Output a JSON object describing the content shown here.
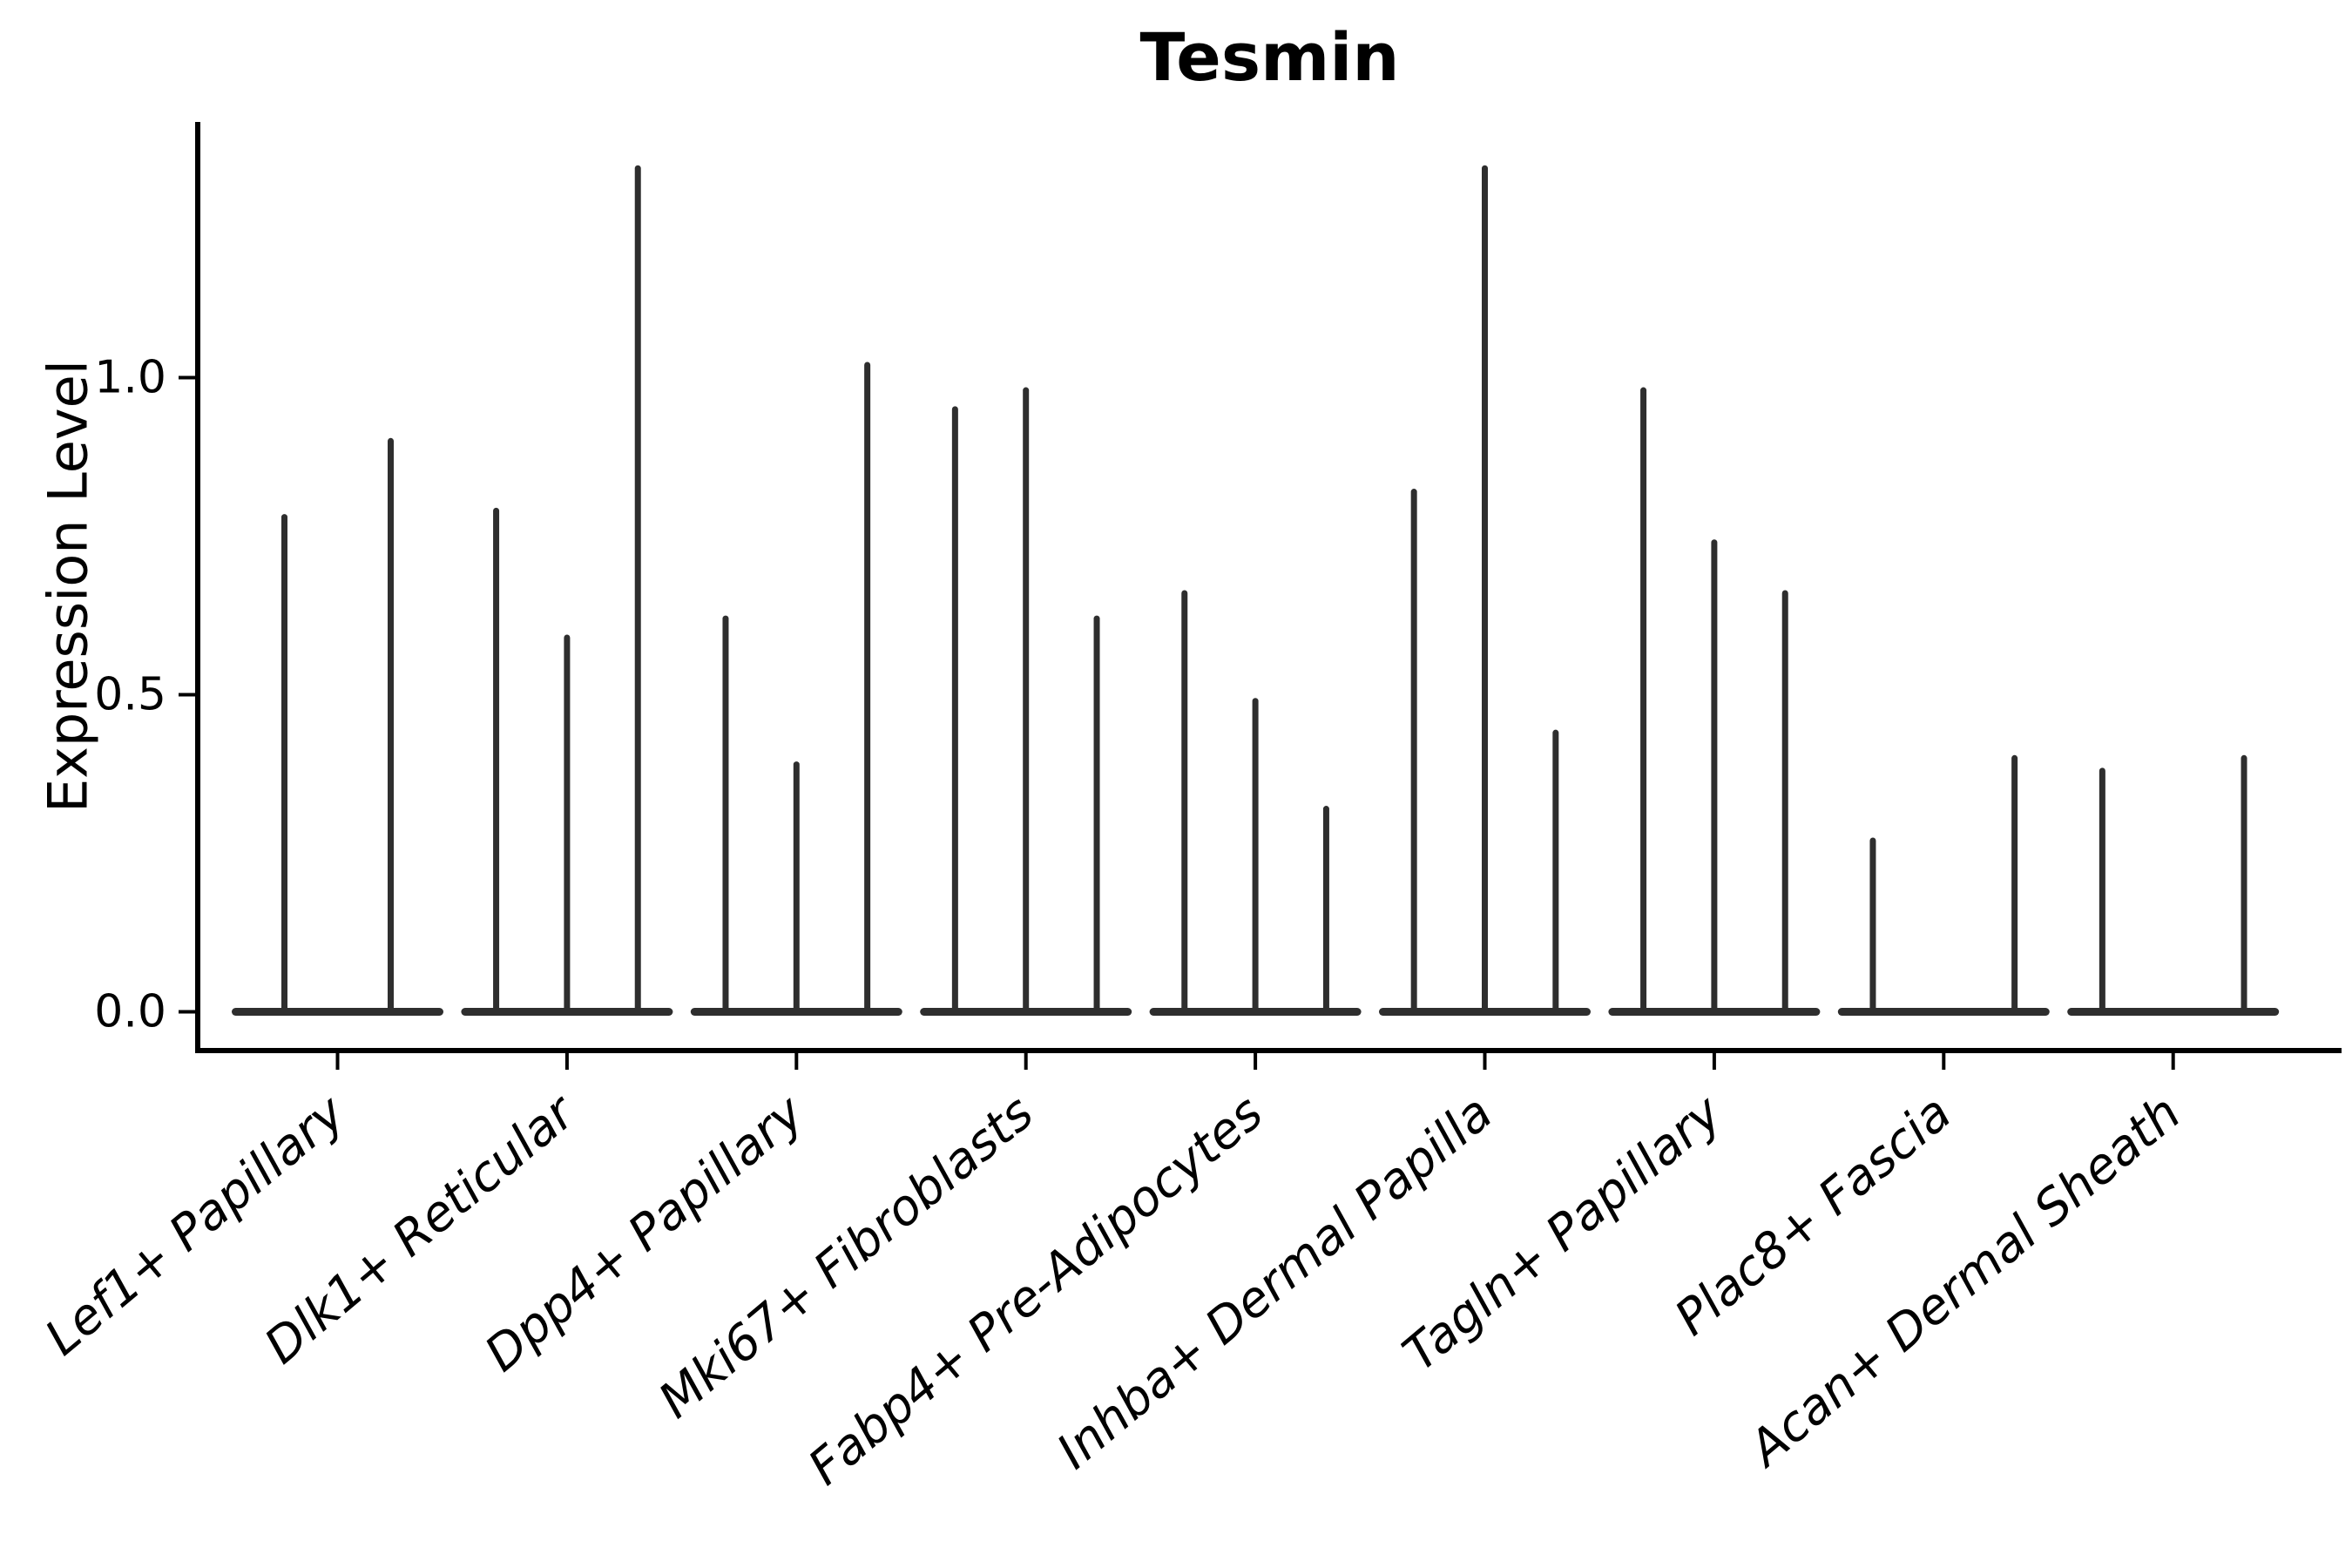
{
  "chart_data": {
    "type": "violin",
    "title": "Tesmin",
    "ylabel": "Expression Level",
    "xlabel": "",
    "yticks": [
      "0.0",
      "0.5",
      "1.0"
    ],
    "ytick_values": [
      0.0,
      0.5,
      1.0
    ],
    "ylim": [
      -0.06,
      1.4
    ],
    "grid": false,
    "legend": "none",
    "ink_color": "#2e2e2e",
    "axis_color": "#000000",
    "background_color": "#ffffff",
    "xtick_labels": [
      "Lef1+ Papillary",
      "Dlk1+ Reticular",
      "Dpp4+ Papillary",
      "Mki67+ Fibroblasts",
      "Fabp4+ Pre-Adipocytes",
      "Inhba+ Dermal Papilla",
      "Tagln+ Papillary",
      "Plac8+ Fascia",
      "Acan+ Dermal Sheath"
    ],
    "groups": [
      {
        "category": "Lef1+ Papillary",
        "violin_peaks": [
          0.78,
          0.9
        ]
      },
      {
        "category": "Dlk1+ Reticular",
        "violin_peaks": [
          0.79,
          0.59,
          1.33
        ]
      },
      {
        "category": "Dpp4+ Papillary",
        "violin_peaks": [
          0.62,
          0.39,
          1.02
        ]
      },
      {
        "category": "Mki67+ Fibroblasts",
        "violin_peaks": [
          0.95,
          0.98,
          0.62
        ]
      },
      {
        "category": "Fabp4+ Pre-Adipocytes",
        "violin_peaks": [
          0.66,
          0.49,
          0.32
        ]
      },
      {
        "category": "Inhba+ Dermal Papilla",
        "violin_peaks": [
          0.82,
          1.33,
          0.44
        ]
      },
      {
        "category": "Tagln+ Papillary",
        "violin_peaks": [
          0.98,
          0.74,
          0.66
        ]
      },
      {
        "category": "Plac8+ Fascia",
        "violin_peaks": [
          0.27,
          0.0,
          0.4
        ]
      },
      {
        "category": "Acan+ Dermal Sheath",
        "violin_peaks": [
          0.38,
          0.0,
          0.4
        ]
      }
    ],
    "violin_note": "Each category shows thin needle violins; distributions collapse to a flat bar at expression 0 with narrow spikes reaching the listed maxima."
  }
}
